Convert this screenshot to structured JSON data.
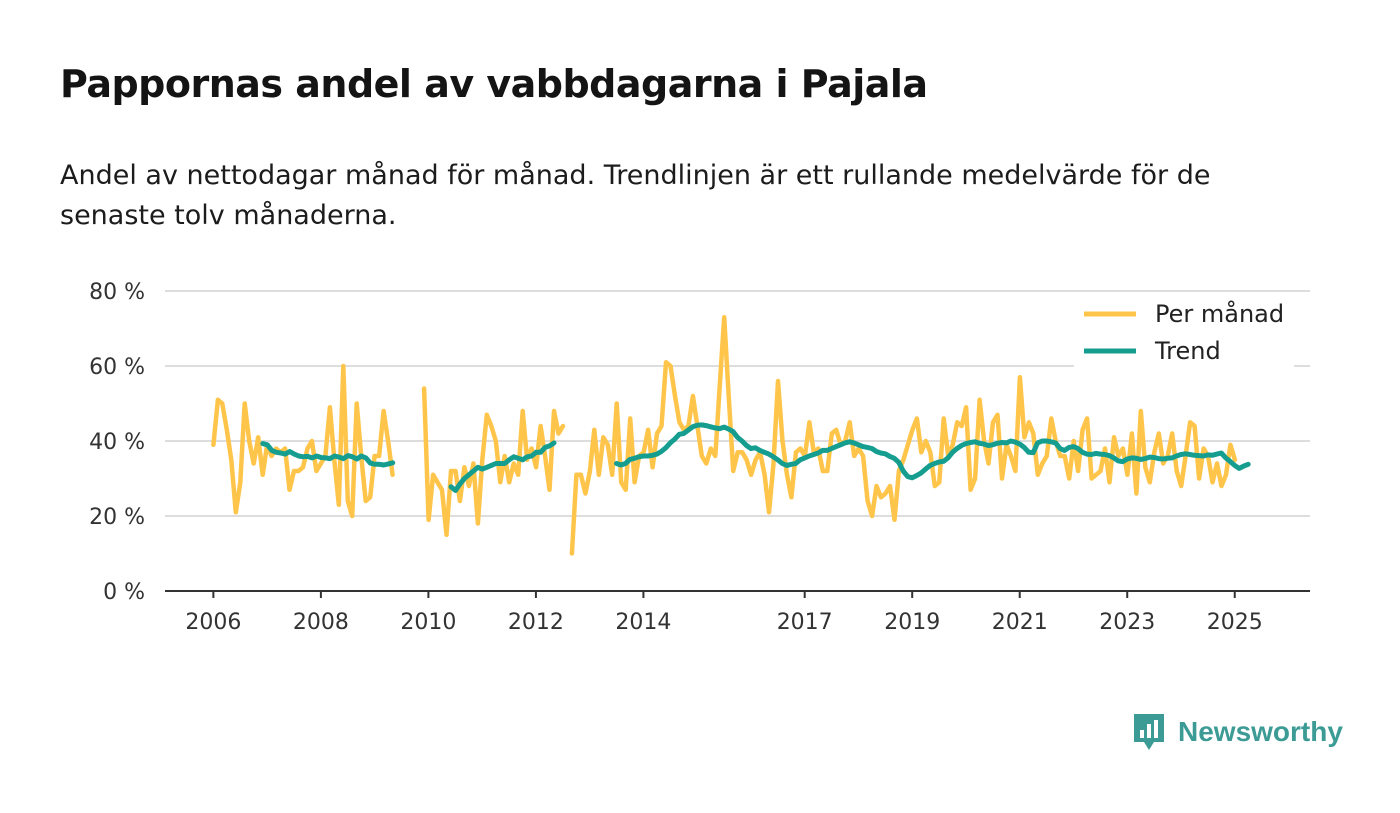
{
  "title": "Pappornas andel av vabbdagarna i Pajala",
  "subtitle": "Andel av nettodagar månad för månad. Trendlinjen är ett rullande medelvärde för de senaste tolv månaderna.",
  "brand": {
    "name": "Newsworthy",
    "color": "#3d9b96"
  },
  "colors": {
    "monthly": "#ffc54a",
    "trend": "#159e8f",
    "grid": "#dddddd",
    "axis": "#333333"
  },
  "chart_data": {
    "type": "line",
    "title": "Pappornas andel av vabbdagarna i Pajala",
    "xlabel": "",
    "ylabel": "",
    "ylim": [
      0,
      80
    ],
    "xlim": [
      2005.1,
      2026.4
    ],
    "yticks": [
      0,
      20,
      40,
      60,
      80
    ],
    "ytick_labels": [
      "0 %",
      "20 %",
      "40 %",
      "60 %",
      "80 %"
    ],
    "xticks": [
      2006,
      2008,
      2010,
      2012,
      2014,
      2017,
      2019,
      2021,
      2023,
      2025
    ],
    "xtick_labels": [
      "2006",
      "2008",
      "2010",
      "2012",
      "2014",
      "2017",
      "2019",
      "2021",
      "2023",
      "2025"
    ],
    "legend": {
      "position": "top-right",
      "entries": [
        "Per månad",
        "Trend"
      ]
    },
    "series": [
      {
        "name": "Per månad",
        "color": "#ffc54a",
        "segments": [
          {
            "start": 2006.0,
            "values": [
              39,
              51,
              50,
              43,
              35,
              21,
              29,
              50,
              40,
              34,
              41,
              31,
              39,
              36,
              38,
              37,
              38,
              27,
              32,
              32,
              33,
              38,
              40,
              32,
              34,
              36,
              49,
              35,
              23,
              60,
              24,
              20,
              50,
              36,
              24,
              25,
              36,
              36,
              48,
              40,
              31
            ]
          },
          {
            "start": 2009.92,
            "values": [
              54,
              19,
              31,
              29,
              27,
              15,
              32,
              32,
              24,
              33,
              28,
              34,
              18,
              35,
              47,
              44,
              40,
              29,
              36,
              29,
              34,
              31,
              48,
              35,
              38,
              33,
              44,
              36,
              27,
              48,
              42,
              44
            ]
          },
          {
            "start": 2012.67,
            "values": [
              10,
              31,
              31,
              26,
              32,
              43,
              31,
              41,
              39,
              31,
              50,
              29,
              27,
              46,
              29,
              36,
              37,
              43,
              33,
              42,
              44,
              61,
              60,
              52,
              45,
              43,
              44,
              52,
              44,
              36,
              34,
              38,
              36,
              55,
              73,
              52,
              32,
              37,
              37,
              35,
              31,
              35,
              37,
              31,
              21,
              34,
              56,
              40,
              31,
              25,
              37,
              38,
              36,
              45,
              37,
              38,
              32,
              32,
              42,
              43,
              39,
              40,
              45,
              36,
              38,
              36,
              24,
              20,
              28,
              25,
              26,
              28,
              19,
              32,
              35,
              39,
              43,
              46,
              37,
              40,
              37,
              28,
              29,
              46,
              36,
              39,
              45,
              44,
              49,
              27,
              30,
              51,
              40,
              34,
              45,
              47,
              30,
              39,
              36,
              32,
              57,
              41,
              45,
              42,
              31,
              34,
              36,
              46,
              40,
              36,
              36,
              30,
              40,
              32,
              43,
              46,
              30,
              31,
              32,
              38,
              29,
              41,
              36,
              38,
              31,
              42,
              26,
              48,
              33,
              29,
              37,
              42,
              34,
              36,
              42,
              32,
              28,
              36,
              45,
              44,
              30,
              38,
              36,
              29,
              34,
              28,
              31,
              39,
              35
            ]
          }
        ]
      },
      {
        "name": "Trend",
        "color": "#159e8f",
        "segments": [
          {
            "start": 2006.92,
            "values": [
              39.3,
              39,
              37.5,
              37,
              36.8,
              36.5,
              37.2,
              36.5,
              36,
              35.8,
              35.9,
              35.5,
              36,
              35.6,
              35.5,
              35.3,
              36,
              35.7,
              35.3,
              36.1,
              35.8,
              35.2,
              36,
              35.5,
              34.1,
              33.8,
              33.8,
              33.6,
              33.9,
              34.2
            ]
          },
          {
            "start": 2010.42,
            "values": [
              27.8,
              26.8,
              28.5,
              30,
              31,
              32,
              33,
              32.5,
              33,
              33.5,
              34,
              34,
              34,
              35,
              35.8,
              35.4,
              35,
              35.8,
              36,
              37,
              37,
              38.3,
              38.7,
              39.5
            ]
          },
          {
            "start": 2013.5,
            "values": [
              34,
              33.6,
              34,
              35.1,
              35.4,
              35.8,
              36,
              36,
              36.2,
              36.5,
              37.2,
              38.2,
              39.5,
              40.5,
              41.8,
              42,
              42.9,
              43.8,
              44.2,
              44.3,
              44.1,
              43.8,
              43.5,
              43.3,
              43.7,
              43.2,
              42.5,
              41,
              40,
              38.8,
              38,
              38.2,
              37.5,
              37,
              36.5,
              35.8,
              35,
              34,
              33.5,
              33.8,
              34,
              35,
              35.5,
              36,
              36.4,
              36.8,
              37.5,
              37.5,
              38,
              38.5,
              39,
              39.5,
              39.8,
              39.5,
              39,
              38.5,
              38.3,
              38,
              37.2,
              36.8,
              36.6,
              35.9,
              35.4,
              34.3,
              32,
              30.5,
              30.2,
              30.8,
              31.5,
              32.5,
              33.5,
              34,
              34.4,
              34.6,
              35.5,
              37,
              38,
              38.8,
              39.3,
              39.6,
              39.8,
              39.4,
              39.2,
              38.8,
              39,
              39.4,
              39.6,
              39.5,
              40,
              39.7,
              39.2,
              38.3,
              37,
              36.9,
              39.5,
              40,
              40,
              39.8,
              39.5,
              38,
              37.5,
              38.3,
              38.5,
              38,
              37,
              36.5,
              36.4,
              36.7,
              36.5,
              36.4,
              36.1,
              35.5,
              34.7,
              34.5,
              35.2,
              35.5,
              35.4,
              35.1,
              35.3,
              35.7,
              35.6,
              35.3,
              35.2,
              35.4,
              35.5,
              36,
              36.4,
              36.6,
              36.4,
              36.2,
              36.1,
              36,
              36.3,
              36.2,
              36.5,
              36.8,
              35.5,
              34.5,
              33.5,
              32.7,
              33.3,
              33.8
            ]
          }
        ]
      }
    ]
  }
}
